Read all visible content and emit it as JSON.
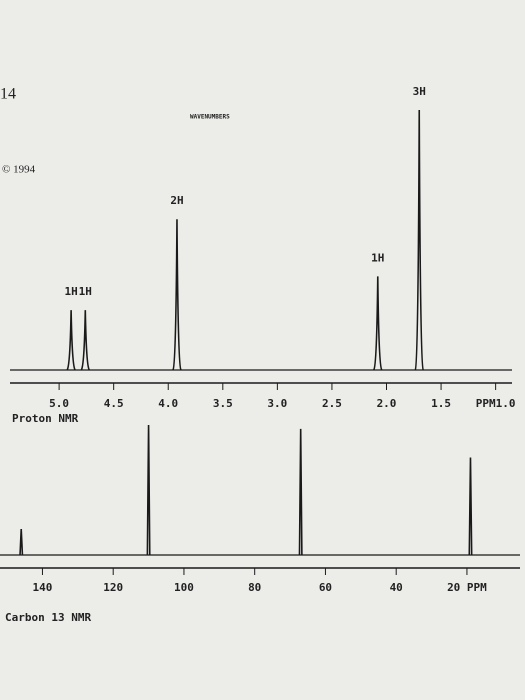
{
  "page_number": "14",
  "header_text": "WAVENUMBERS",
  "copyright": "© 1994",
  "chart_data": [
    {
      "type": "spectrum",
      "title": "Proton NMR",
      "x": [
        4.89,
        4.76,
        3.92,
        2.08,
        1.7
      ],
      "values": [
        23,
        23,
        58,
        36,
        100
      ],
      "peak_labels": [
        "1H",
        "1H",
        "2H",
        "1H",
        "3H"
      ],
      "xlim": [
        5.45,
        0.85
      ],
      "ylim": [
        0,
        100
      ],
      "xticks": [
        {
          "value": 5.0,
          "label": "5.0"
        },
        4.5,
        {
          "value": 4.0,
          "label": "4.0"
        },
        3.5,
        {
          "value": 3.0,
          "label": "3.0"
        },
        2.5,
        {
          "value": 2.0,
          "label": "2.0"
        },
        1.5,
        {
          "value": 1.0,
          "label": "PPM1.0"
        }
      ],
      "color": "#1a1a1a"
    },
    {
      "type": "spectrum",
      "title": "Carbon 13 NMR",
      "x": [
        146,
        110,
        67,
        19
      ],
      "values": [
        20,
        100,
        97,
        75
      ],
      "xlim": [
        152,
        5
      ],
      "ylim": [
        0,
        100
      ],
      "xticks": [
        140,
        120,
        100,
        80,
        60,
        40,
        {
          "value": 20,
          "label": "20 PPM"
        }
      ],
      "color": "#1a1a1a"
    }
  ]
}
